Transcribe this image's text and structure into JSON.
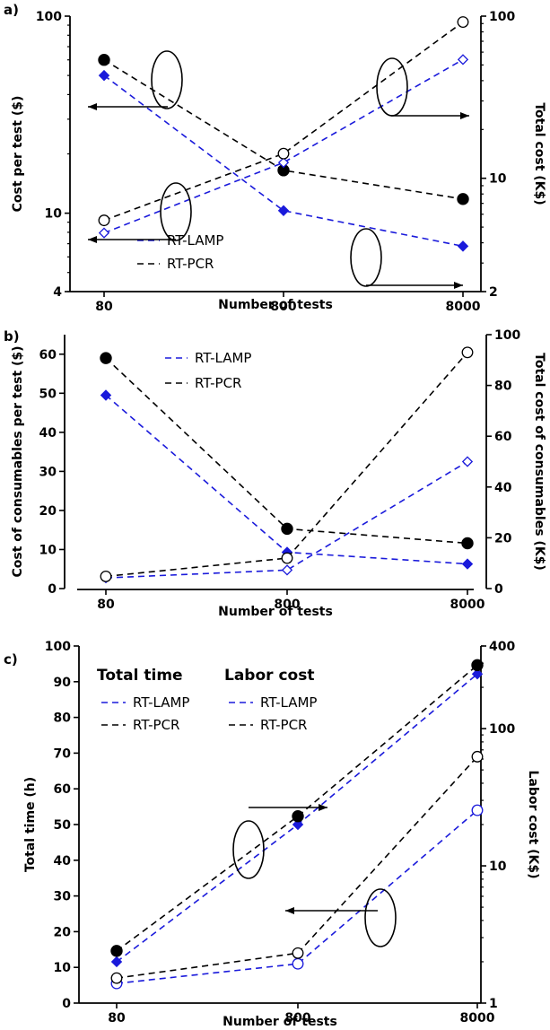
{
  "chart_data": [
    {
      "type": "line",
      "panel_label": "a)",
      "xlabel": "Number of tests",
      "categories": [
        "80",
        "800",
        "8000"
      ],
      "ylabel": "Cost per test ($)",
      "y2label": "Total cost (K$)",
      "yscale": "log",
      "ylim": [
        4,
        100
      ],
      "yticks": [
        4,
        10,
        100
      ],
      "y2scale": "log",
      "y2lim": [
        2,
        100
      ],
      "y2ticks": [
        2,
        10,
        100
      ],
      "legend": [
        "RT-LAMP",
        "RT-PCR"
      ],
      "series": [
        {
          "name": "RT-LAMP",
          "axis": "left",
          "color": "#1a1adb",
          "marker": "diamond-filled",
          "values": [
            50,
            10.3,
            6.8
          ]
        },
        {
          "name": "RT-PCR",
          "axis": "left",
          "color": "#000000",
          "marker": "circle-filled",
          "values": [
            60,
            16.5,
            11.8
          ]
        },
        {
          "name": "RT-LAMP",
          "axis": "right",
          "color": "#1a1adb",
          "marker": "diamond-open",
          "values": [
            4.6,
            12.5,
            54
          ]
        },
        {
          "name": "RT-PCR",
          "axis": "right",
          "color": "#000000",
          "marker": "circle-open",
          "values": [
            5.5,
            14.2,
            92
          ]
        }
      ]
    },
    {
      "type": "line",
      "panel_label": "b)",
      "xlabel": "Number of tests",
      "categories": [
        "80",
        "800",
        "8000"
      ],
      "ylabel": "Cost of consumables per test ($)",
      "y2label": "Total cost of consumables (K$)",
      "yscale": "linear",
      "ylim": [
        0,
        65
      ],
      "yticks": [
        0,
        10,
        20,
        30,
        40,
        50,
        60
      ],
      "y2scale": "linear",
      "y2lim": [
        0,
        100
      ],
      "y2ticks": [
        0,
        20,
        40,
        60,
        80,
        100
      ],
      "legend": [
        "RT-LAMP",
        "RT-PCR"
      ],
      "series": [
        {
          "name": "RT-LAMP",
          "axis": "left",
          "color": "#1a1adb",
          "marker": "diamond-filled",
          "values": [
            49.5,
            9.3,
            6.3
          ]
        },
        {
          "name": "RT-PCR",
          "axis": "left",
          "color": "#000000",
          "marker": "circle-filled",
          "values": [
            59,
            15.3,
            11.6
          ]
        },
        {
          "name": "RT-LAMP",
          "axis": "right",
          "color": "#1a1adb",
          "marker": "diamond-open",
          "values": [
            4.2,
            7.3,
            50
          ]
        },
        {
          "name": "RT-PCR",
          "axis": "right",
          "color": "#000000",
          "marker": "circle-open",
          "values": [
            4.8,
            12,
            93
          ]
        }
      ]
    },
    {
      "type": "line",
      "panel_label": "c)",
      "xlabel": "Number of tests",
      "categories": [
        "80",
        "800",
        "8000"
      ],
      "ylabel": "Total time (h)",
      "y2label": "Labor cost (K$)",
      "yscale": "linear",
      "ylim": [
        0,
        100
      ],
      "yticks": [
        0,
        10,
        20,
        30,
        40,
        50,
        60,
        70,
        80,
        90,
        100
      ],
      "y2scale": "log",
      "y2lim": [
        1,
        400
      ],
      "y2ticks": [
        1,
        10,
        100,
        400
      ],
      "legend_groups": [
        {
          "title": "Total time",
          "entries": [
            "RT-LAMP",
            "RT-PCR"
          ]
        },
        {
          "title": "Labor cost",
          "entries": [
            "RT-LAMP",
            "RT-PCR"
          ]
        }
      ],
      "series": [
        {
          "name": "RT-LAMP",
          "axis": "left",
          "color": "#1a1adb",
          "marker": "circle-open",
          "values": [
            5.5,
            11,
            54
          ]
        },
        {
          "name": "RT-PCR",
          "axis": "left",
          "color": "#000000",
          "marker": "circle-open",
          "values": [
            7,
            14,
            69
          ]
        },
        {
          "name": "RT-LAMP",
          "axis": "right",
          "color": "#1a1adb",
          "marker": "diamond-filled",
          "values": [
            2,
            20,
            250
          ]
        },
        {
          "name": "RT-PCR",
          "axis": "right",
          "color": "#000000",
          "marker": "circle-filled",
          "values": [
            2.4,
            23,
            290
          ]
        }
      ]
    }
  ]
}
